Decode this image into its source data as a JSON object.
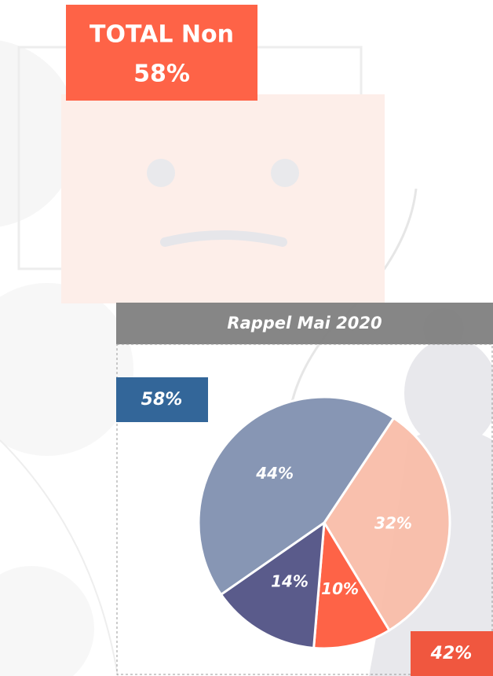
{
  "chart_data": {
    "type": "pie",
    "title": "Rappel Mai 2020",
    "values": [
      32,
      10,
      14,
      44
    ],
    "value_labels": [
      "32%",
      "10%",
      "14%",
      "44%"
    ],
    "colors": [
      "#f9bba6",
      "#fe6347",
      "#5a5b8b",
      "#8796b4"
    ],
    "annotations": [
      "TOTAL Non",
      "58%",
      "58%",
      "42%"
    ]
  }
}
